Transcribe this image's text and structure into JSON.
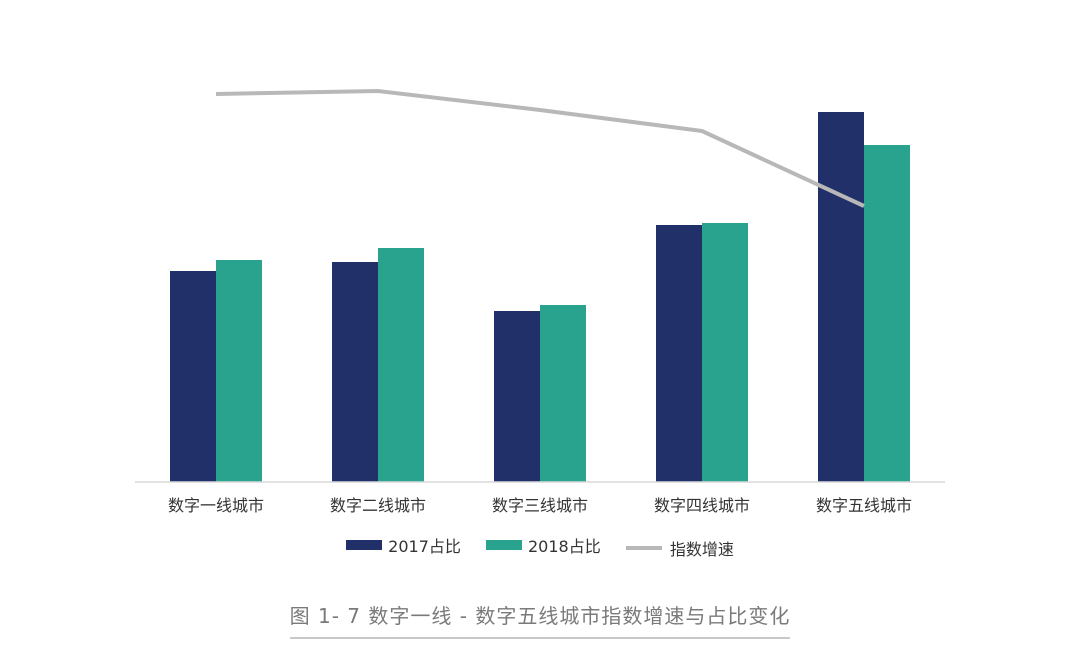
{
  "chart_data": {
    "type": "bar",
    "categories": [
      "数字一线城市",
      "数字二线城市",
      "数字三线城市",
      "数字四线城市",
      "数字五线城市"
    ],
    "series": [
      {
        "name": "2017占比",
        "type": "bar",
        "color": "#22306a",
        "values": [
          211,
          220,
          171,
          257,
          370
        ]
      },
      {
        "name": "2018占比",
        "type": "bar",
        "color": "#2aa38e",
        "values": [
          222,
          234,
          177,
          259,
          337
        ]
      },
      {
        "name": "指数增速",
        "type": "line",
        "color": "#b8b8b8",
        "values": [
          388,
          391,
          372,
          351,
          276
        ]
      }
    ],
    "ylim": [
      0,
      400
    ],
    "grid": false,
    "legend_position": "bottom",
    "title": "",
    "xlabel": "",
    "ylabel": ""
  },
  "caption": "图 1- 7 数字一线 - 数字五线城市指数增速与占比变化"
}
